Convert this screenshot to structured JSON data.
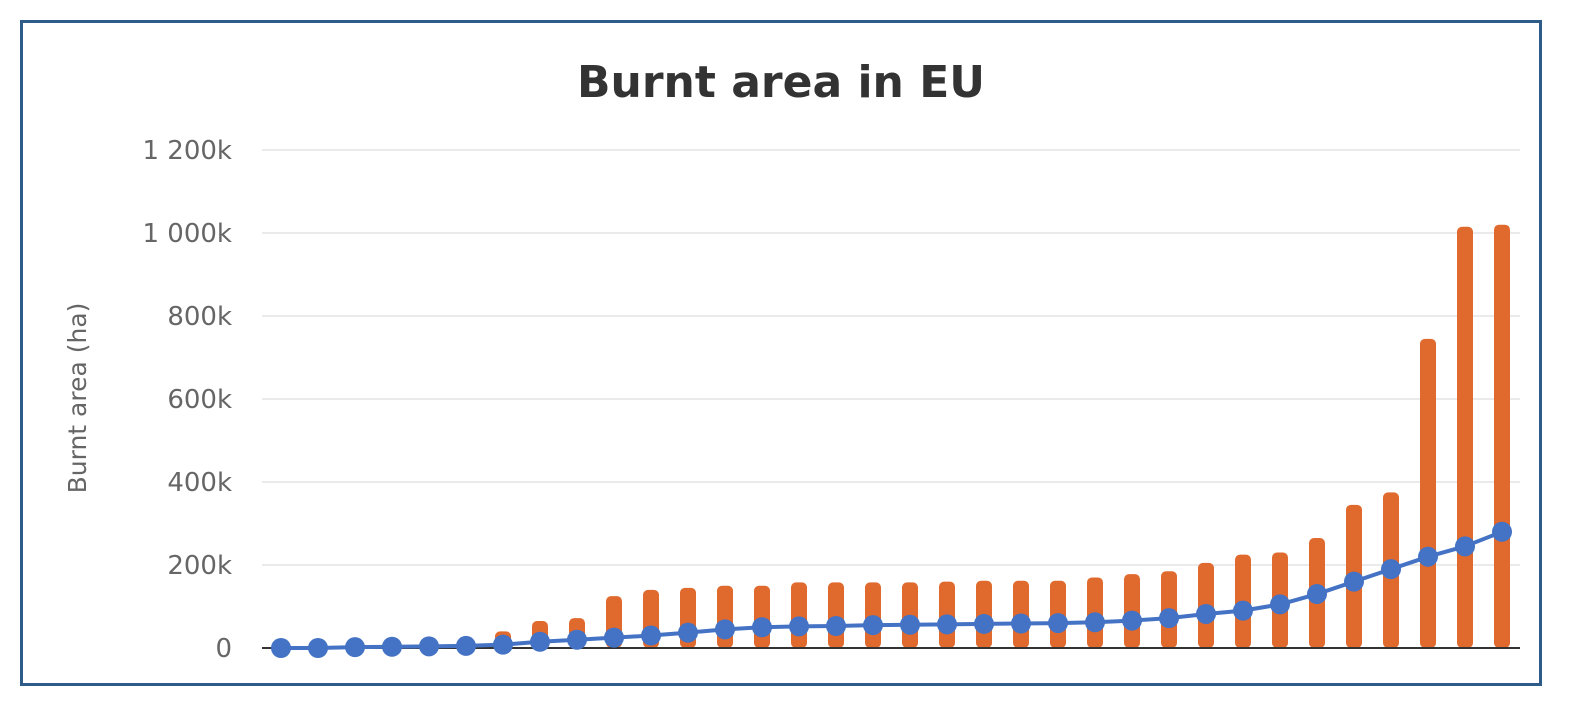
{
  "colors": {
    "bars": "#e06a2e",
    "line": "#4472c4",
    "grid": "#e4e4e4",
    "axis": "#333333",
    "frame": "#2f5b8a"
  },
  "chart_data": {
    "type": "bar",
    "title": "Burnt area in EU",
    "xlabel": "",
    "ylabel": "Burnt area (ha)",
    "ylim": [
      0,
      1200000
    ],
    "yticks": [
      0,
      200000,
      400000,
      600000,
      800000,
      1000000,
      1200000
    ],
    "ytick_labels": [
      "0",
      "200k",
      "400k",
      "600k",
      "800k",
      "1 000k",
      "1 200k"
    ],
    "grid": true,
    "series": [
      {
        "type": "bar",
        "values": [
          0,
          0,
          0,
          0,
          0,
          0,
          40000,
          65000,
          72000,
          125000,
          140000,
          145000,
          150000,
          150000,
          158000,
          158000,
          158000,
          158000,
          160000,
          162000,
          162000,
          162000,
          170000,
          178000,
          185000,
          205000,
          225000,
          230000,
          265000,
          345000,
          375000,
          745000,
          1015000,
          1020000
        ]
      },
      {
        "type": "line",
        "values": [
          0,
          0,
          2000,
          3000,
          4000,
          5000,
          8000,
          15000,
          20000,
          25000,
          30000,
          37000,
          45000,
          50000,
          52000,
          53000,
          55000,
          56000,
          57000,
          58000,
          59000,
          60000,
          62000,
          66000,
          72000,
          82000,
          90000,
          105000,
          130000,
          160000,
          190000,
          220000,
          245000,
          280000
        ]
      }
    ]
  }
}
